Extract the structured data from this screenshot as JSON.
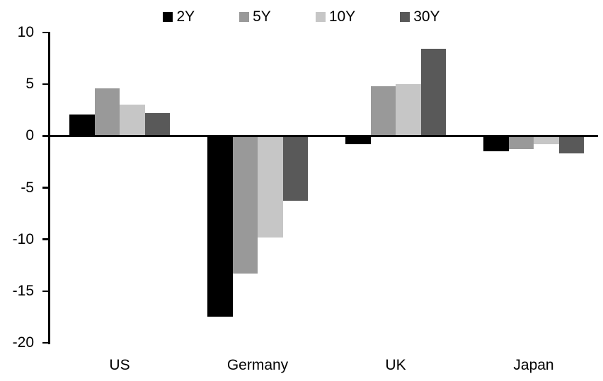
{
  "chart_data": {
    "type": "bar",
    "title": "",
    "categories": [
      "US",
      "Germany",
      "UK",
      "Japan"
    ],
    "series": [
      {
        "name": "2Y",
        "color": "#000000",
        "values": [
          2.1,
          -17.5,
          -0.8,
          -1.5
        ]
      },
      {
        "name": "5Y",
        "color": "#999999",
        "values": [
          4.6,
          -13.3,
          4.8,
          -1.3
        ]
      },
      {
        "name": "10Y",
        "color": "#c6c6c6",
        "values": [
          3.0,
          -9.8,
          5.0,
          -0.8
        ]
      },
      {
        "name": "30Y",
        "color": "#595959",
        "values": [
          2.2,
          -6.3,
          8.4,
          -1.7
        ]
      }
    ],
    "xlabel": "",
    "ylabel": "",
    "ylim": [
      -20,
      10
    ],
    "yticks": [
      10,
      5,
      0,
      -5,
      -10,
      -15,
      -20
    ],
    "grid": false,
    "legend_position": "top",
    "axis_color": "#000000",
    "background_color": "#ffffff"
  }
}
